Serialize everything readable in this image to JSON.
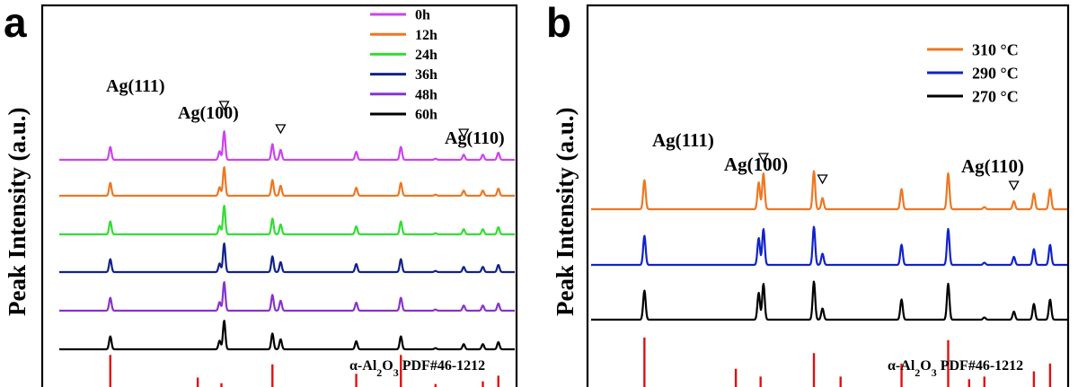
{
  "chart_data": [
    {
      "panel": "a",
      "type": "line",
      "title": "",
      "xlabel": "",
      "ylabel": "Peak Intensity (a.u.)",
      "grid": false,
      "legend_position": "top-right",
      "series": [
        {
          "name": "0h",
          "color": "#CC44EE",
          "order": 0
        },
        {
          "name": "12h",
          "color": "#EE7722",
          "order": 1
        },
        {
          "name": "24h",
          "color": "#33DD33",
          "order": 2
        },
        {
          "name": "36h",
          "color": "#112288",
          "order": 3
        },
        {
          "name": "48h",
          "color": "#8833CC",
          "order": 4
        },
        {
          "name": "60h",
          "color": "#000000",
          "order": 5
        }
      ],
      "peaks": [
        {
          "x": 25.6,
          "h": 0.45
        },
        {
          "x": 37.6,
          "h": 0.3
        },
        {
          "x": 38.1,
          "h": 1.0
        },
        {
          "x": 43.4,
          "h": 0.55
        },
        {
          "x": 44.3,
          "h": 0.35
        },
        {
          "x": 52.6,
          "h": 0.28
        },
        {
          "x": 57.5,
          "h": 0.45
        },
        {
          "x": 61.3,
          "h": 0.04
        },
        {
          "x": 64.4,
          "h": 0.18
        },
        {
          "x": 66.5,
          "h": 0.18
        },
        {
          "x": 68.2,
          "h": 0.25
        }
      ],
      "reference": {
        "label_pre": "α-Al",
        "sub1": "2",
        "label_mid": "O",
        "sub2": "3",
        "label_post": " PDF#46-1212",
        "color": "#DD1111",
        "lines": [
          {
            "x": 25.6,
            "h": 0.85
          },
          {
            "x": 35.2,
            "h": 0.25
          },
          {
            "x": 37.8,
            "h": 0.1
          },
          {
            "x": 43.4,
            "h": 0.6
          },
          {
            "x": 52.6,
            "h": 0.35
          },
          {
            "x": 57.5,
            "h": 0.85
          },
          {
            "x": 61.3,
            "h": 0.08
          },
          {
            "x": 66.5,
            "h": 0.15
          },
          {
            "x": 68.2,
            "h": 0.3
          }
        ]
      },
      "annotations": [
        {
          "label": "Ag(111)",
          "x": 38.1
        },
        {
          "label": "Ag(100)",
          "x": 44.3
        },
        {
          "label": "Ag(110)",
          "x": 64.4
        }
      ]
    },
    {
      "panel": "b",
      "type": "line",
      "title": "",
      "xlabel": "",
      "ylabel": "Peak Intensity (a.u.)",
      "grid": false,
      "legend_position": "top-right",
      "series": [
        {
          "name": "310 °C",
          "color": "#EE7722",
          "order": 0
        },
        {
          "name": "290 °C",
          "color": "#1122CC",
          "order": 1
        },
        {
          "name": "270 °C",
          "color": "#000000",
          "order": 2
        }
      ],
      "peaks": [
        {
          "x": 25.6,
          "h": 0.65
        },
        {
          "x": 37.6,
          "h": 0.6
        },
        {
          "x": 38.1,
          "h": 0.8
        },
        {
          "x": 43.4,
          "h": 0.85
        },
        {
          "x": 44.3,
          "h": 0.25
        },
        {
          "x": 52.6,
          "h": 0.45
        },
        {
          "x": 57.5,
          "h": 0.8
        },
        {
          "x": 61.3,
          "h": 0.05
        },
        {
          "x": 64.4,
          "h": 0.18
        },
        {
          "x": 66.5,
          "h": 0.35
        },
        {
          "x": 68.2,
          "h": 0.45
        }
      ],
      "reference": {
        "label_pre": "α-Al",
        "sub1": "2",
        "label_mid": "O",
        "sub2": "3",
        "label_post": " PDF#46-1212",
        "color": "#DD1111",
        "lines": [
          {
            "x": 25.6,
            "h": 0.95
          },
          {
            "x": 35.2,
            "h": 0.35
          },
          {
            "x": 37.8,
            "h": 0.2
          },
          {
            "x": 43.4,
            "h": 0.65
          },
          {
            "x": 46.2,
            "h": 0.2
          },
          {
            "x": 52.6,
            "h": 0.45
          },
          {
            "x": 57.5,
            "h": 0.9
          },
          {
            "x": 59.7,
            "h": 0.15
          },
          {
            "x": 61.3,
            "h": 0.2
          },
          {
            "x": 66.5,
            "h": 0.3
          },
          {
            "x": 68.2,
            "h": 0.45
          }
        ]
      },
      "annotations": [
        {
          "label": "Ag(111)",
          "x": 38.1
        },
        {
          "label": "Ag(100)",
          "x": 44.3
        },
        {
          "label": "Ag(110)",
          "x": 64.4
        }
      ]
    }
  ]
}
